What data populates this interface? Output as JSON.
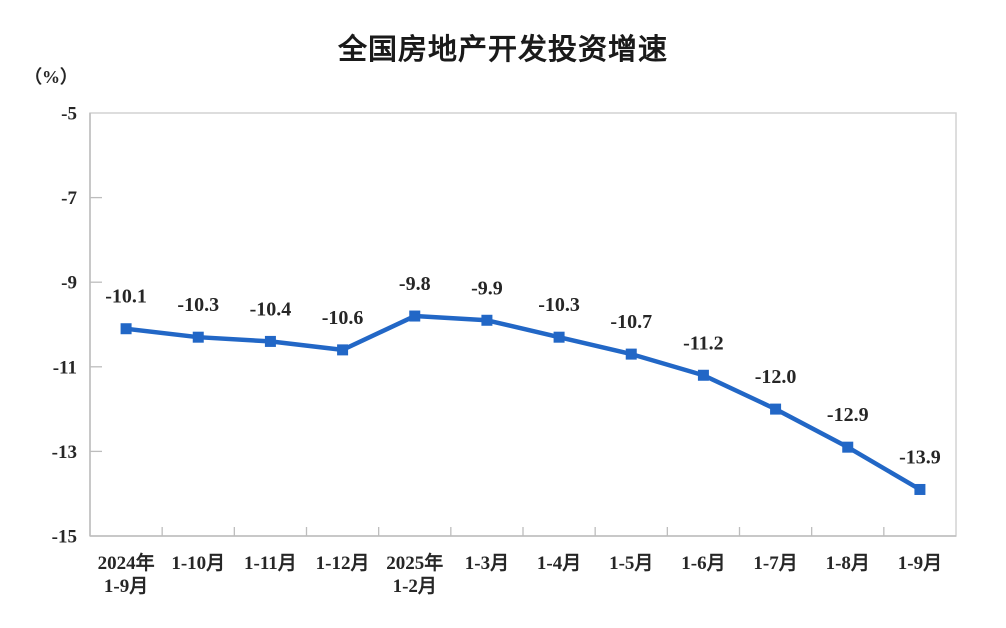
{
  "title": "全国房地产开发投资增速",
  "chart_data": {
    "type": "line",
    "title": "全国房地产开发投资增速",
    "ylabel": "（%）",
    "xlabel": "",
    "categories": [
      "2024年\n1-9月",
      "1-10月",
      "1-11月",
      "1-12月",
      "2025年\n1-2月",
      "1-3月",
      "1-4月",
      "1-5月",
      "1-6月",
      "1-7月",
      "1-8月",
      "1-9月"
    ],
    "values": [
      -10.1,
      -10.3,
      -10.4,
      -10.6,
      -9.8,
      -9.9,
      -10.3,
      -10.7,
      -11.2,
      -12.0,
      -12.9,
      -13.9
    ],
    "data_labels": [
      "-10.1",
      "-10.3",
      "-10.4",
      "-10.6",
      "-9.8",
      "-9.9",
      "-10.3",
      "-10.7",
      "-11.2",
      "-12.0",
      "-12.9",
      "-13.9"
    ],
    "ylim": [
      -15,
      -5
    ],
    "yticks": [
      -5,
      -7,
      -9,
      -11,
      -13,
      -15
    ],
    "grid": false,
    "legend": "none",
    "series_color": "#2267c6",
    "label_color": "#262626",
    "border_color": "#d2d2d2",
    "axis_color": "#bdbdbd"
  }
}
